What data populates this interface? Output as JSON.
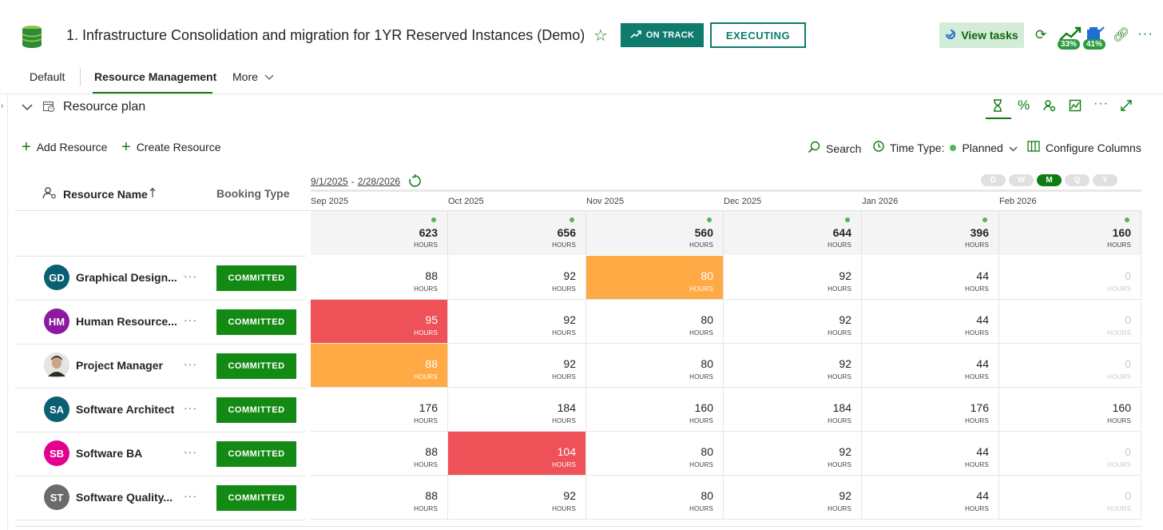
{
  "header": {
    "title": "1. Infrastructure Consolidation and migration for 1YR Reserved Instances (Demo)",
    "on_track_label": "ON TRACK",
    "executing_label": "EXECUTING",
    "view_tasks_label": "View tasks",
    "badge_1": "33%",
    "badge_2": "41%",
    "more_glyph": "···"
  },
  "tabs": [
    {
      "label": "Default"
    },
    {
      "label": "Resource Management"
    },
    {
      "label": "More"
    }
  ],
  "section": {
    "title": "Resource plan",
    "more_glyph": "···"
  },
  "toolbar": {
    "add_resource": "Add Resource",
    "create_resource": "Create Resource",
    "search": "Search",
    "time_type_label": "Time Type:",
    "time_type_value": "Planned",
    "configure_columns": "Configure Columns"
  },
  "grid_header": {
    "resource_name": "Resource Name",
    "booking_type": "Booking Type",
    "date_start": "9/1/2025",
    "date_sep": "-",
    "date_end": "2/28/2026",
    "scales": [
      "D",
      "W",
      "M",
      "Q",
      "Y"
    ],
    "active_scale": "M"
  },
  "months": [
    "Sep 2025",
    "Oct 2025",
    "Nov 2025",
    "Dec 2025",
    "Jan 2026",
    "Feb 2026"
  ],
  "totals": [
    "623",
    "656",
    "560",
    "644",
    "396",
    "160"
  ],
  "unit": "HOURS",
  "rows": [
    {
      "initials": "GD",
      "name": "Graphical Design...",
      "avatar_color": "#0b5f73",
      "booking": "COMMITTED",
      "more": "···",
      "values": [
        "88",
        "92",
        "80",
        "92",
        "44",
        "0"
      ],
      "states": [
        "normal",
        "normal",
        "orange",
        "normal",
        "normal",
        "zero"
      ]
    },
    {
      "initials": "HM",
      "name": "Human Resource...",
      "avatar_color": "#8a1aa0",
      "booking": "COMMITTED",
      "more": "···",
      "values": [
        "95",
        "92",
        "80",
        "92",
        "44",
        "0"
      ],
      "states": [
        "red",
        "normal",
        "normal",
        "normal",
        "normal",
        "zero"
      ]
    },
    {
      "initials": "",
      "name": "Project Manager",
      "avatar_color": "#3b3b3b",
      "booking": "COMMITTED",
      "more": "···",
      "values": [
        "88",
        "92",
        "80",
        "92",
        "44",
        "0"
      ],
      "states": [
        "orange",
        "normal",
        "normal",
        "normal",
        "normal",
        "zero"
      ]
    },
    {
      "initials": "SA",
      "name": "Software Architect",
      "avatar_color": "#0b5f73",
      "booking": "COMMITTED",
      "more": "···",
      "values": [
        "176",
        "184",
        "160",
        "184",
        "176",
        "160"
      ],
      "states": [
        "normal",
        "normal",
        "normal",
        "normal",
        "normal",
        "normal"
      ]
    },
    {
      "initials": "SB",
      "name": "Software BA",
      "avatar_color": "#e3008c",
      "booking": "COMMITTED",
      "more": "···",
      "values": [
        "88",
        "104",
        "80",
        "92",
        "44",
        "0"
      ],
      "states": [
        "normal",
        "red",
        "normal",
        "normal",
        "normal",
        "zero"
      ]
    },
    {
      "initials": "ST",
      "name": "Software Quality...",
      "avatar_color": "#6b6b6b",
      "booking": "COMMITTED",
      "more": "···",
      "values": [
        "88",
        "92",
        "80",
        "92",
        "44",
        "0"
      ],
      "states": [
        "normal",
        "normal",
        "normal",
        "normal",
        "normal",
        "zero"
      ]
    }
  ],
  "colors": {
    "accent": "#107c10",
    "on_track": "#0f7b6c",
    "over_allocated": "#ee5158",
    "near_capacity": "#ffaa44",
    "committed": "#138a13"
  }
}
